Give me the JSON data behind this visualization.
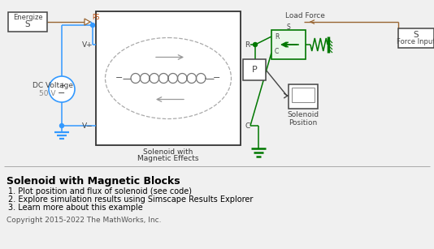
{
  "background_color": "#f0f0f0",
  "diagram_bg": "#ffffff",
  "title": "Solenoid with Magnetic Blocks",
  "bullet1": "1. Plot position and flux of solenoid (see code)",
  "bullet2": "2. Explore simulation results using Simscape Results Explorer",
  "bullet3": "3. Learn more about this example",
  "copyright": "Copyright 2015-2022 The MathWorks, Inc.",
  "wire_blue": "#3399ff",
  "wire_green": "#007700",
  "wire_brown": "#996633",
  "block_outline": "#444444",
  "coil_color": "#888888",
  "ps_label_color": "#cc4400",
  "dashed_color": "#aaaaaa"
}
